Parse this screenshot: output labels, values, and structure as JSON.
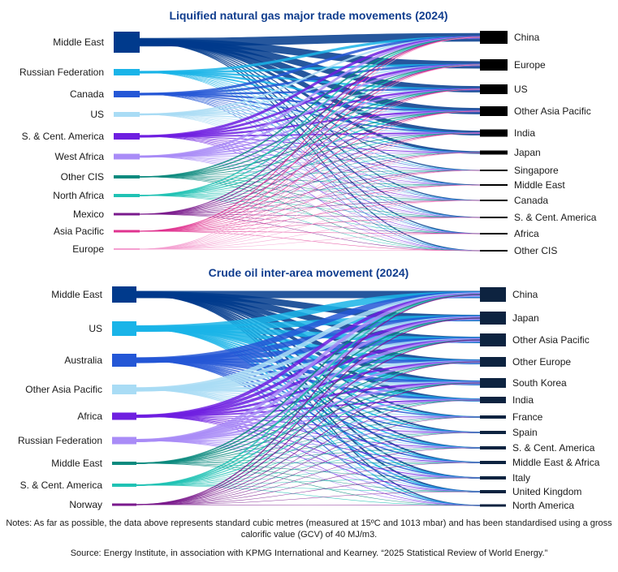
{
  "lng": {
    "title": "Liquified natural gas major trade movements (2024)",
    "sources": [
      {
        "name": "Middle East",
        "color": "#003a8c"
      },
      {
        "name": "Russian Federation",
        "color": "#1ab4e8"
      },
      {
        "name": "Canada",
        "color": "#2457d6"
      },
      {
        "name": "US",
        "color": "#a9dcf5"
      },
      {
        "name": "S. & Cent. America",
        "color": "#6e1fe0"
      },
      {
        "name": "West Africa",
        "color": "#a98cf7"
      },
      {
        "name": "Other CIS",
        "color": "#0b8a7e"
      },
      {
        "name": "North Africa",
        "color": "#20c2b4"
      },
      {
        "name": "Mexico",
        "color": "#7a1a8c"
      },
      {
        "name": "Asia Pacific",
        "color": "#e0338f"
      },
      {
        "name": "Europe",
        "color": "#f59fd0"
      }
    ],
    "destinations": [
      {
        "name": "China"
      },
      {
        "name": "Europe"
      },
      {
        "name": "US"
      },
      {
        "name": "Other Asia Pacific"
      },
      {
        "name": "India"
      },
      {
        "name": "Japan"
      },
      {
        "name": "Singapore"
      },
      {
        "name": "Middle East"
      },
      {
        "name": "Canada"
      },
      {
        "name": "S. & Cent. America"
      },
      {
        "name": "Africa"
      },
      {
        "name": "Other CIS"
      }
    ],
    "dest_color": "#000000"
  },
  "crude": {
    "title": "Crude oil inter-area movement (2024)",
    "sources": [
      {
        "name": "Middle East",
        "color": "#003a8c"
      },
      {
        "name": "US",
        "color": "#1ab4e8"
      },
      {
        "name": "Australia",
        "color": "#2457d6"
      },
      {
        "name": "Other Asia Pacific",
        "color": "#a9dcf5"
      },
      {
        "name": "Africa",
        "color": "#6e1fe0"
      },
      {
        "name": "Russian Federation",
        "color": "#a98cf7"
      },
      {
        "name": "Middle East",
        "color": "#0b8a7e"
      },
      {
        "name": "S. & Cent. America",
        "color": "#20c2b4"
      },
      {
        "name": "Norway",
        "color": "#7a1a8c"
      }
    ],
    "destinations": [
      {
        "name": "China"
      },
      {
        "name": "Japan"
      },
      {
        "name": "Other Asia Pacific"
      },
      {
        "name": "Other Europe"
      },
      {
        "name": "South Korea"
      },
      {
        "name": "India"
      },
      {
        "name": "France"
      },
      {
        "name": "Spain"
      },
      {
        "name": "S. & Cent. America"
      },
      {
        "name": "Middle East & Africa"
      },
      {
        "name": "Italy"
      },
      {
        "name": "United Kingdom"
      },
      {
        "name": "North America"
      }
    ],
    "dest_color": "#0d2340"
  },
  "notes": "Notes: As far as possible, the data above represents standard cubic metres (measured at 15ºC and 1013 mbar) and has been standardised using a gross calorific value (GCV) of 40 MJ/m3.",
  "source": "Source: Energy Institute, in association with KPMG International and Kearney. “2025 Statistical Review of World Energy.”"
}
